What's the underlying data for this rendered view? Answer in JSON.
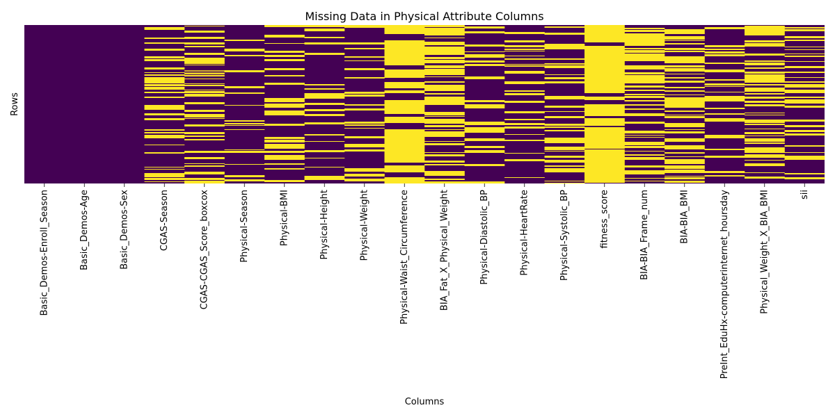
{
  "chart_data": {
    "type": "heatmap",
    "title": "Missing Data in Physical Attribute Columns",
    "xlabel": "Columns",
    "ylabel": "Rows",
    "colors": {
      "present": "#440154",
      "missing": "#fde725"
    },
    "colorbar": false,
    "grid": false,
    "columns": [
      {
        "name": "Basic_Demos-Enroll_Season",
        "missing_fraction": 0.0
      },
      {
        "name": "Basic_Demos-Age",
        "missing_fraction": 0.0
      },
      {
        "name": "Basic_Demos-Sex",
        "missing_fraction": 0.0
      },
      {
        "name": "CGAS-Season",
        "missing_fraction": 0.38
      },
      {
        "name": "CGAS-CGAS_Score_boxcox",
        "missing_fraction": 0.4
      },
      {
        "name": "Physical-Season",
        "missing_fraction": 0.18
      },
      {
        "name": "Physical-BMI",
        "missing_fraction": 0.25
      },
      {
        "name": "Physical-Height",
        "missing_fraction": 0.25
      },
      {
        "name": "Physical-Weight",
        "missing_fraction": 0.24
      },
      {
        "name": "Physical-Waist_Circumference",
        "missing_fraction": 0.8
      },
      {
        "name": "BIA_Fat_X_Physical_Weight",
        "missing_fraction": 0.5
      },
      {
        "name": "Physical-Diastolic_BP",
        "missing_fraction": 0.27
      },
      {
        "name": "Physical-HeartRate",
        "missing_fraction": 0.27
      },
      {
        "name": "Physical-Systolic_BP",
        "missing_fraction": 0.27
      },
      {
        "name": "fitness_score",
        "missing_fraction": 0.85
      },
      {
        "name": "BIA-BIA_Frame_num",
        "missing_fraction": 0.5
      },
      {
        "name": "BIA-BIA_BMI",
        "missing_fraction": 0.5
      },
      {
        "name": "PreInt_EduHx-computerinternet_hoursday",
        "missing_fraction": 0.17
      },
      {
        "name": "Physical_Weight_X_BIA_BMI",
        "missing_fraction": 0.52
      },
      {
        "name": "sii",
        "missing_fraction": 0.31
      }
    ]
  }
}
